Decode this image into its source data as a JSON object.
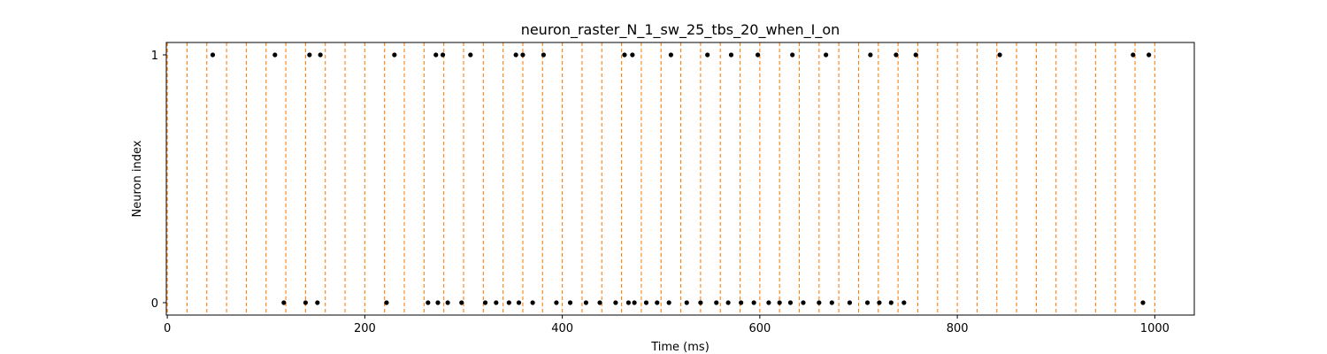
{
  "chart_data": {
    "type": "scatter",
    "title": "neuron_raster_N_1_sw_25_tbs_20_when_I_on",
    "xlabel": "Time (ms)",
    "ylabel": "Neuron index",
    "xlim": [
      -1,
      1040
    ],
    "ylim": [
      -0.05,
      1.05
    ],
    "xticks": [
      0,
      200,
      400,
      600,
      800,
      1000
    ],
    "yticks": [
      0,
      1
    ],
    "grid": false,
    "legend": "none",
    "colors": {
      "spikes": "#000000",
      "markers": "#ff7f0e",
      "axes": "#000000"
    },
    "vertical_markers": {
      "style": "dashed",
      "x": [
        0,
        20,
        40,
        60,
        80,
        100,
        120,
        140,
        160,
        180,
        200,
        220,
        240,
        260,
        280,
        300,
        320,
        340,
        360,
        380,
        400,
        420,
        440,
        460,
        480,
        500,
        520,
        540,
        560,
        580,
        600,
        620,
        640,
        660,
        680,
        700,
        720,
        740,
        760,
        780,
        800,
        820,
        840,
        860,
        880,
        900,
        920,
        940,
        960,
        980,
        1000
      ]
    },
    "series": [
      {
        "neuron": 1,
        "x": [
          46,
          109,
          144,
          155,
          230,
          272,
          279,
          307,
          353,
          360,
          381,
          463,
          471,
          510,
          547,
          571,
          598,
          633,
          667,
          712,
          738,
          758,
          843,
          978,
          994
        ]
      },
      {
        "neuron": 0,
        "x": [
          118,
          140,
          152,
          222,
          264,
          274,
          284,
          298,
          322,
          333,
          346,
          356,
          370,
          394,
          408,
          424,
          438,
          454,
          467,
          473,
          485,
          496,
          508,
          526,
          540,
          556,
          568,
          581,
          594,
          609,
          620,
          631,
          644,
          660,
          673,
          691,
          709,
          721,
          733,
          746,
          988
        ]
      }
    ]
  }
}
